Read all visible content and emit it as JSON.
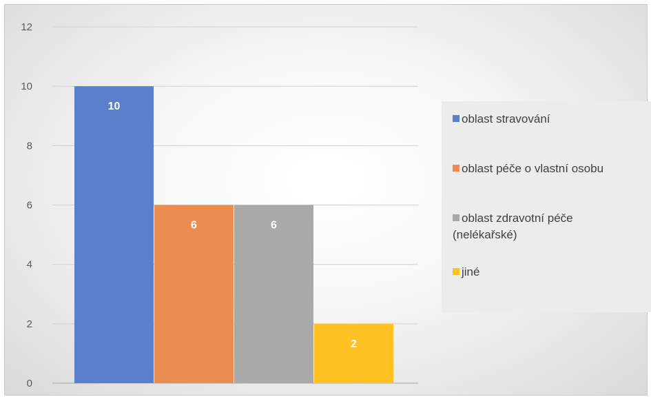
{
  "chart_data": {
    "type": "bar",
    "categories": [
      "oblast stravování",
      "oblast péče o vlastní osobu",
      "oblast zdravotní péče (nelékařské)",
      "jiné"
    ],
    "values": [
      10,
      6,
      6,
      2
    ],
    "colors": [
      "#5b7fca",
      "#ed8c4f",
      "#a9a9a9",
      "#ffc222"
    ],
    "ylim": [
      0,
      12
    ],
    "yticks": [
      0,
      2,
      4,
      6,
      8,
      10,
      12
    ],
    "ytick_labels": [
      "0",
      "2",
      "4",
      "6",
      "8",
      "10",
      "12"
    ],
    "data_labels": [
      "10",
      "6",
      "6",
      "2"
    ],
    "grid": true,
    "legend_position": "right",
    "title": "",
    "xlabel": "",
    "ylabel": ""
  },
  "legend": {
    "items": [
      {
        "lines": [
          "oblast stravování"
        ],
        "color": "#5b7fca"
      },
      {
        "lines": [
          "oblast péče o vlastní osobu"
        ],
        "color": "#ed8c4f"
      },
      {
        "lines": [
          "oblast zdravotní péče",
          "(nelékařské)"
        ],
        "color": "#a9a9a9"
      },
      {
        "lines": [
          "jiné"
        ],
        "color": "#ffc222"
      }
    ]
  }
}
